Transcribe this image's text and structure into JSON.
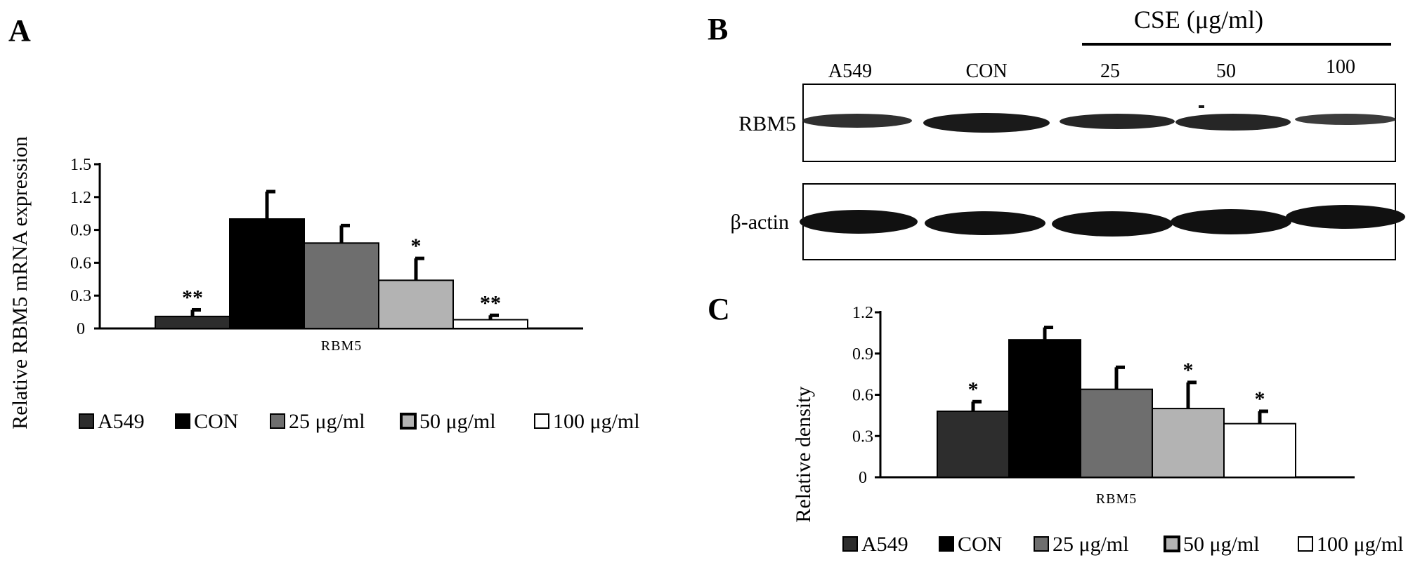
{
  "panels": {
    "a": {
      "letter": "A"
    },
    "b": {
      "letter": "B",
      "treatment_label": "CSE (μg/ml)",
      "lanes": [
        "A549",
        "CON",
        "25",
        "50",
        "100"
      ],
      "blots": [
        {
          "label": "RBM5"
        },
        {
          "label": "β-actin"
        }
      ]
    },
    "c": {
      "letter": "C"
    }
  },
  "chart_data": [
    {
      "type": "bar",
      "panel": "A",
      "ylabel": "Relative RBM5 mRNA expression",
      "xlabel": "RBM5",
      "ylim": [
        0,
        1.5
      ],
      "yticks": [
        "0",
        "0.3",
        "0.6",
        "0.9",
        "1.2",
        "1.5"
      ],
      "grid": false,
      "legend": "bottom",
      "series": [
        {
          "name": "A549",
          "value": 0.11,
          "error": 0.06,
          "sig": "**",
          "color": "#2d2d2d"
        },
        {
          "name": "CON",
          "value": 1.0,
          "error": 0.25,
          "sig": "",
          "color": "#000000"
        },
        {
          "name": "25 μg/ml",
          "value": 0.78,
          "error": 0.16,
          "sig": "",
          "color": "#6e6e6e"
        },
        {
          "name": "50 μg/ml",
          "value": 0.44,
          "error": 0.2,
          "sig": "*",
          "color": "#b3b3b3"
        },
        {
          "name": "100 μg/ml",
          "value": 0.08,
          "error": 0.04,
          "sig": "**",
          "color": "#ffffff"
        }
      ]
    },
    {
      "type": "bar",
      "panel": "C",
      "ylabel": "Relative density",
      "xlabel": "RBM5",
      "ylim": [
        0,
        1.2
      ],
      "yticks": [
        "0",
        "0.3",
        "0.6",
        "0.9",
        "1.2"
      ],
      "grid": false,
      "legend": "bottom",
      "series": [
        {
          "name": "A549",
          "value": 0.48,
          "error": 0.07,
          "sig": "*",
          "color": "#2d2d2d"
        },
        {
          "name": "CON",
          "value": 1.0,
          "error": 0.09,
          "sig": "",
          "color": "#000000"
        },
        {
          "name": "25 μg/ml",
          "value": 0.64,
          "error": 0.16,
          "sig": "",
          "color": "#6e6e6e"
        },
        {
          "name": "50 μg/ml",
          "value": 0.5,
          "error": 0.19,
          "sig": "*",
          "color": "#b3b3b3"
        },
        {
          "name": "100 μg/ml",
          "value": 0.39,
          "error": 0.09,
          "sig": "*",
          "color": "#ffffff"
        }
      ]
    }
  ]
}
